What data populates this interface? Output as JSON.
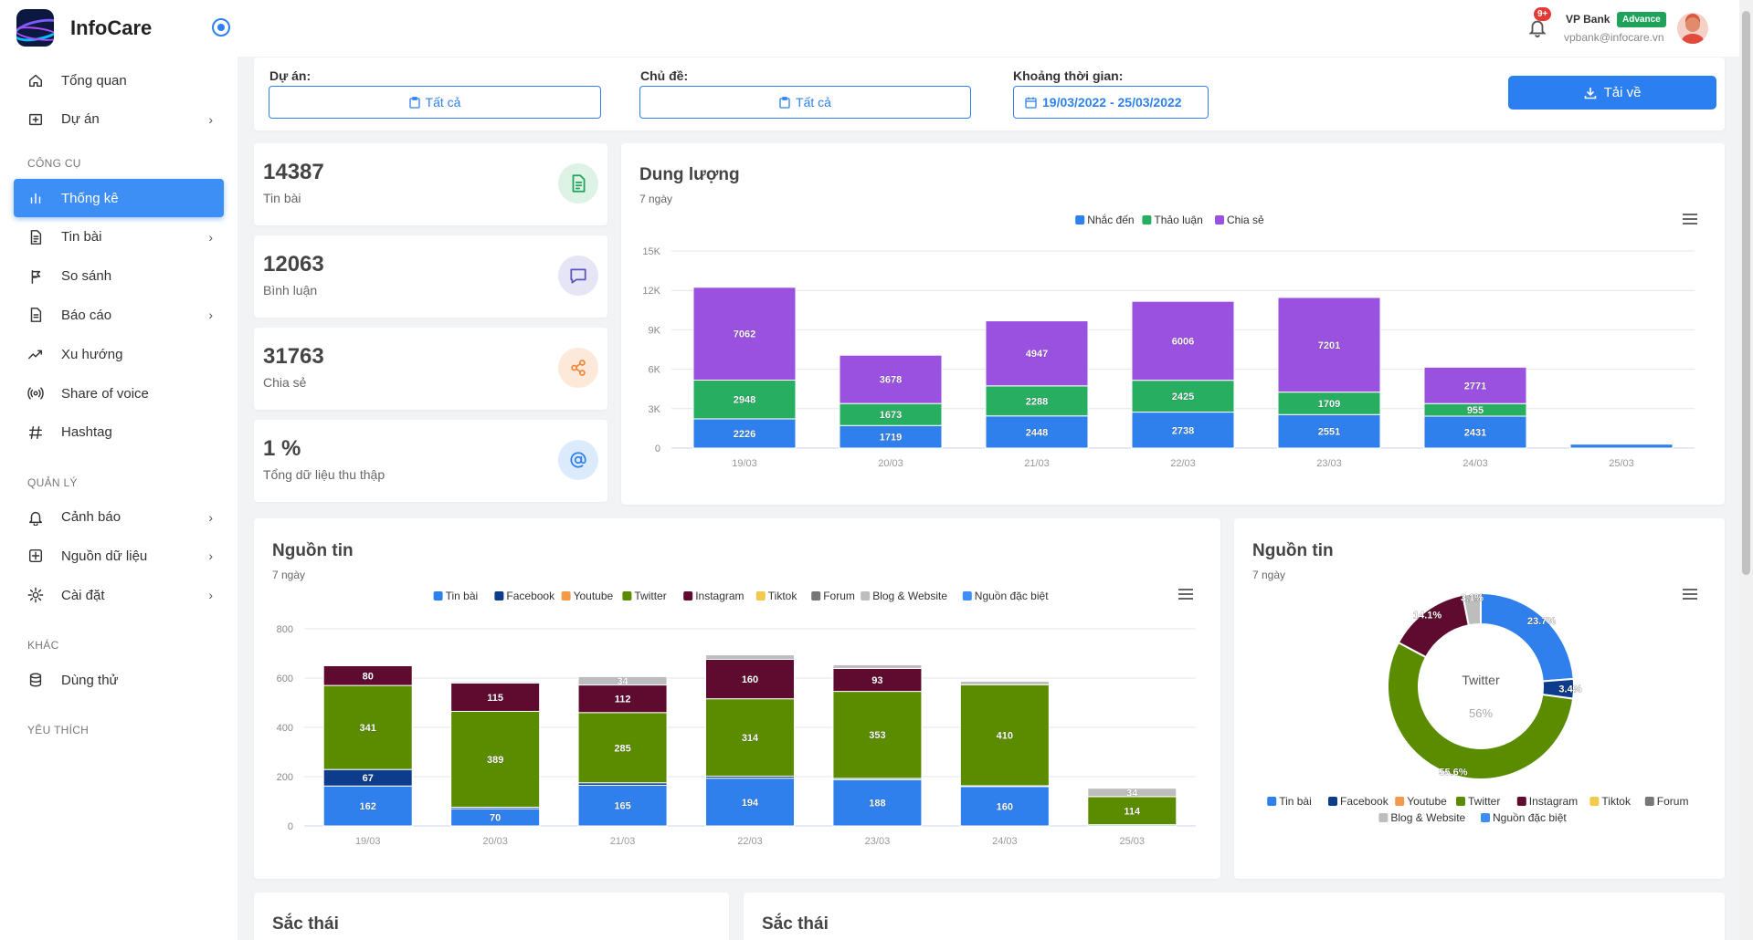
{
  "app": {
    "name": "InfoCare"
  },
  "sidebar": {
    "items": [
      {
        "label": "Tổng quan",
        "icon": "home-icon"
      },
      {
        "label": "Dự án",
        "icon": "folder-plus-icon",
        "chevron": true
      }
    ],
    "sections": [
      {
        "label": "CÔNG CỤ",
        "items": [
          {
            "label": "Thống kê",
            "icon": "bar-chart-icon",
            "active": true
          },
          {
            "label": "Tin bài",
            "icon": "document-icon",
            "chevron": true
          },
          {
            "label": "So sánh",
            "icon": "compare-icon"
          },
          {
            "label": "Báo cáo",
            "icon": "report-icon",
            "chevron": true
          },
          {
            "label": "Xu hướng",
            "icon": "trend-icon"
          },
          {
            "label": "Share of voice",
            "icon": "broadcast-icon"
          },
          {
            "label": "Hashtag",
            "icon": "hashtag-icon"
          }
        ]
      },
      {
        "label": "QUẢN LÝ",
        "items": [
          {
            "label": "Cảnh báo",
            "icon": "bell-icon",
            "chevron": true
          },
          {
            "label": "Nguồn dữ liệu",
            "icon": "plus-square-icon",
            "chevron": true
          },
          {
            "label": "Cài đặt",
            "icon": "gear-icon",
            "chevron": true
          }
        ]
      },
      {
        "label": "KHÁC",
        "items": [
          {
            "label": "Dùng thử",
            "icon": "database-icon"
          }
        ]
      },
      {
        "label": "YÊU THÍCH",
        "items": []
      }
    ]
  },
  "header": {
    "notification_count": "9+",
    "user_name": "VP Bank",
    "plan_badge": "Advance",
    "user_email": "vpbank@infocare.vn"
  },
  "filters": {
    "project_label": "Dự án:",
    "project_value": "Tất cả",
    "topic_label": "Chủ đề:",
    "topic_value": "Tất cả",
    "period_label": "Khoảng thời gian:",
    "period_value": "19/03/2022 - 25/03/2022",
    "download_label": "Tải về"
  },
  "stats": [
    {
      "value": "14387",
      "label": "Tin bài",
      "icon": "document-icon",
      "color": "#1fa35a",
      "bg": "#ddf3e6"
    },
    {
      "value": "12063",
      "label": "Bình luận",
      "icon": "comment-icon",
      "color": "#5a57b8",
      "bg": "#e6e5f6"
    },
    {
      "value": "31763",
      "label": "Chia sẻ",
      "icon": "share-icon",
      "color": "#f08a3c",
      "bg": "#fde9da"
    },
    {
      "value": "1 %",
      "label": "Tổng dữ liệu thu thập",
      "icon": "at-icon",
      "color": "#2f80ed",
      "bg": "#dcebfb"
    }
  ],
  "volume_chart": {
    "title": "Dung lượng",
    "subtitle": "7 ngày"
  },
  "source_chart": {
    "title": "Nguồn tin",
    "subtitle": "7 ngày"
  },
  "source_donut": {
    "title": "Nguồn tin",
    "subtitle": "7 ngày",
    "center_label": "Twitter",
    "center_value": "56%"
  },
  "sentiment": [
    {
      "title": "Sắc thái"
    },
    {
      "title": "Sắc thái"
    }
  ],
  "chart_data": [
    {
      "type": "bar",
      "stacked": true,
      "categories": [
        "19/03",
        "20/03",
        "21/03",
        "22/03",
        "23/03",
        "24/03",
        "25/03"
      ],
      "series": [
        {
          "name": "Nhắc đến",
          "color": "#2f80ed",
          "values": [
            2226,
            1719,
            2448,
            2738,
            2551,
            2431,
            300
          ]
        },
        {
          "name": "Thảo luận",
          "color": "#27ae60",
          "values": [
            2948,
            1673,
            2288,
            2425,
            1709,
            955,
            0
          ]
        },
        {
          "name": "Chia sẻ",
          "color": "#9b51e0",
          "values": [
            7062,
            3678,
            4947,
            6006,
            7201,
            2771,
            0
          ]
        }
      ],
      "ylim": [
        0,
        15000
      ],
      "yticks": [
        "0",
        "3K",
        "6K",
        "9K",
        "12K",
        "15K"
      ],
      "legend": "top"
    },
    {
      "type": "bar",
      "stacked": true,
      "categories": [
        "19/03",
        "20/03",
        "21/03",
        "22/03",
        "23/03",
        "24/03",
        "25/03"
      ],
      "series": [
        {
          "name": "Tin bài",
          "color": "#2f80ed",
          "values": [
            162,
            70,
            165,
            194,
            188,
            160,
            5
          ]
        },
        {
          "name": "Facebook",
          "color": "#0d3c8c",
          "values": [
            67,
            6,
            10,
            8,
            5,
            3,
            0
          ]
        },
        {
          "name": "Youtube",
          "color": "#f2994a",
          "values": [
            0,
            0,
            0,
            0,
            0,
            0,
            0
          ]
        },
        {
          "name": "Twitter",
          "color": "#5b8c00",
          "values": [
            341,
            389,
            285,
            314,
            353,
            410,
            114
          ]
        },
        {
          "name": "Instagram",
          "color": "#5e0b2f",
          "values": [
            80,
            115,
            112,
            160,
            93,
            0,
            0
          ]
        },
        {
          "name": "Tiktok",
          "color": "#f2c94c",
          "values": [
            0,
            0,
            0,
            0,
            0,
            0,
            0
          ]
        },
        {
          "name": "Forum",
          "color": "#777777",
          "values": [
            0,
            0,
            0,
            0,
            0,
            0,
            0
          ]
        },
        {
          "name": "Blog & Website",
          "color": "#bdbdbd",
          "values": [
            3,
            5,
            34,
            18,
            15,
            14,
            34
          ]
        },
        {
          "name": "Nguồn đặc biệt",
          "color": "#3d8ef5",
          "values": [
            0,
            0,
            0,
            0,
            0,
            0,
            0
          ]
        }
      ],
      "ylim": [
        0,
        800
      ],
      "yticks": [
        "0",
        "200",
        "400",
        "600",
        "800"
      ],
      "legend": "top"
    },
    {
      "type": "pie",
      "donut": true,
      "slices": [
        {
          "name": "Tin bài",
          "color": "#2f80ed",
          "value": 23.7,
          "label": "23.7%"
        },
        {
          "name": "Facebook",
          "color": "#0d3c8c",
          "value": 3.4,
          "label": "3.4%"
        },
        {
          "name": "Youtube",
          "color": "#f2994a",
          "value": 0,
          "label": ""
        },
        {
          "name": "Twitter",
          "color": "#5b8c00",
          "value": 55.6,
          "label": "55.6%"
        },
        {
          "name": "Instagram",
          "color": "#5e0b2f",
          "value": 14.1,
          "label": "14.1%"
        },
        {
          "name": "Tiktok",
          "color": "#f2c94c",
          "value": 0,
          "label": ""
        },
        {
          "name": "Forum",
          "color": "#777777",
          "value": 0,
          "label": ""
        },
        {
          "name": "Blog & Website",
          "color": "#bdbdbd",
          "value": 3.1,
          "label": "3.1%"
        },
        {
          "name": "Nguồn đặc biệt",
          "color": "#3d8ef5",
          "value": 0,
          "label": ""
        }
      ],
      "legend": "bottom"
    }
  ]
}
